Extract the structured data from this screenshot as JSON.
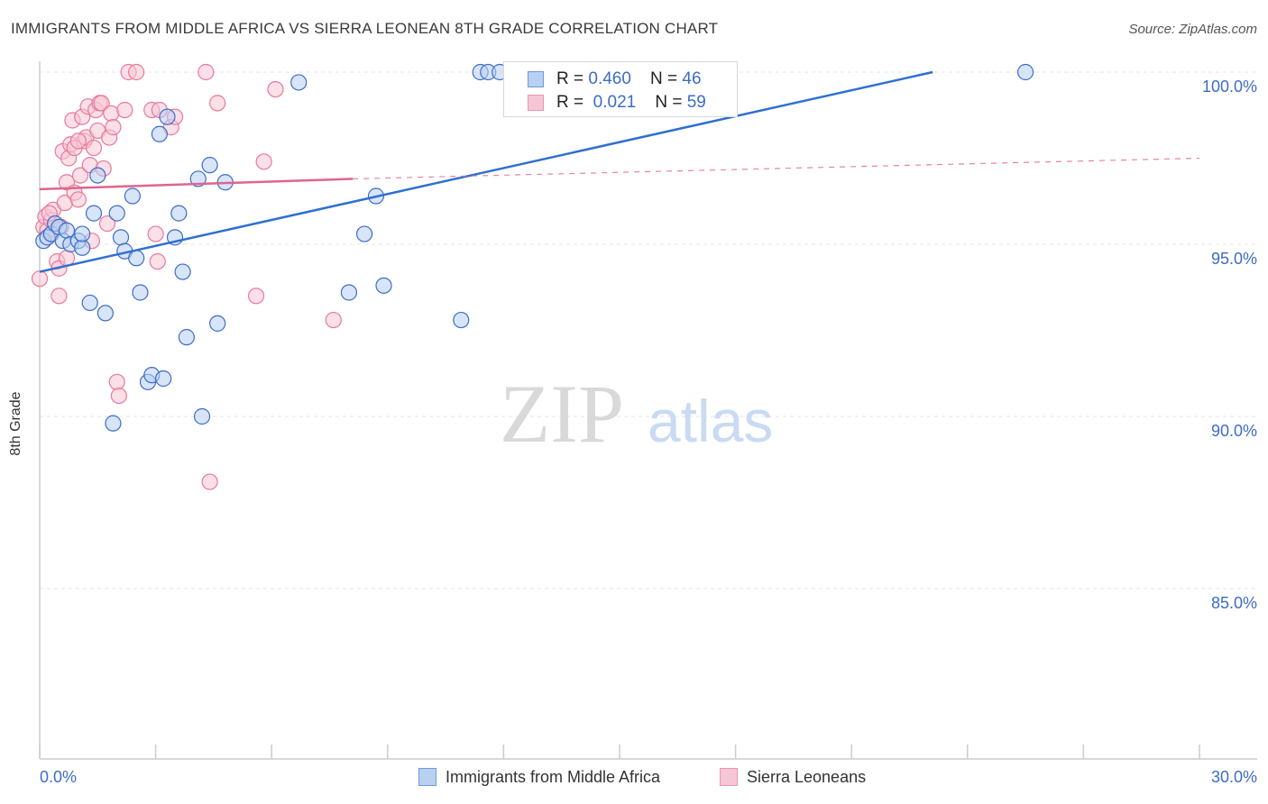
{
  "header": {
    "title": "IMMIGRANTS FROM MIDDLE AFRICA VS SIERRA LEONEAN 8TH GRADE CORRELATION CHART",
    "source": "Source: ZipAtlas.com"
  },
  "watermark": {
    "zip": "ZIP",
    "atlas": "atlas"
  },
  "legend": {
    "series1": {
      "r_label": "R = ",
      "r_value": "0.460",
      "n_label": "N = ",
      "n_value": "46"
    },
    "series2": {
      "r_label": "R = ",
      "r_value": "0.021",
      "n_label": "N = ",
      "n_value": "59"
    }
  },
  "colors": {
    "blue": "#3d6cc6",
    "blue_fill": "#b8d0f2",
    "blue_line": "#2f6fd0",
    "pink": "#e8789c",
    "pink_fill": "#f7c6d6",
    "pink_line": "#e0648e",
    "grid": "#e6e6e6"
  },
  "chart_data": {
    "type": "scatter",
    "title": "IMMIGRANTS FROM MIDDLE AFRICA VS SIERRA LEONEAN 8TH GRADE CORRELATION CHART",
    "xlabel": "",
    "ylabel": "8th Grade",
    "xlim": [
      0,
      30
    ],
    "ylim": [
      80,
      100.4
    ],
    "x_tick_labels": [
      "0.0%",
      "30.0%"
    ],
    "y_ticks": [
      100,
      95,
      90,
      85
    ],
    "y_tick_labels": [
      "100.0%",
      "95.0%",
      "90.0%",
      "85.0%"
    ],
    "grid": true,
    "legend_position": "bottom",
    "series": [
      {
        "name": "Immigrants from Middle Africa",
        "color": "#3d6cc6",
        "r": 0.46,
        "n": 46,
        "trend": {
          "x": [
            0,
            23.1
          ],
          "y": [
            94.2,
            100.0
          ]
        },
        "points": [
          [
            0.1,
            95.1
          ],
          [
            0.2,
            95.2
          ],
          [
            0.3,
            95.3
          ],
          [
            0.4,
            95.6
          ],
          [
            0.5,
            95.5
          ],
          [
            0.6,
            95.1
          ],
          [
            0.7,
            95.4
          ],
          [
            0.8,
            95.0
          ],
          [
            1.0,
            95.1
          ],
          [
            1.1,
            94.9
          ],
          [
            1.1,
            95.3
          ],
          [
            1.3,
            93.3
          ],
          [
            1.4,
            95.9
          ],
          [
            1.5,
            97.0
          ],
          [
            1.7,
            93.0
          ],
          [
            1.9,
            89.8
          ],
          [
            2.0,
            95.9
          ],
          [
            2.1,
            95.2
          ],
          [
            2.2,
            94.8
          ],
          [
            2.4,
            96.4
          ],
          [
            2.5,
            94.6
          ],
          [
            2.6,
            93.6
          ],
          [
            2.8,
            91.0
          ],
          [
            2.9,
            91.2
          ],
          [
            3.1,
            98.2
          ],
          [
            3.2,
            91.1
          ],
          [
            3.3,
            98.7
          ],
          [
            3.5,
            95.2
          ],
          [
            3.6,
            95.9
          ],
          [
            3.7,
            94.2
          ],
          [
            3.8,
            92.3
          ],
          [
            4.1,
            96.9
          ],
          [
            4.2,
            90.0
          ],
          [
            4.4,
            97.3
          ],
          [
            4.6,
            92.7
          ],
          [
            4.8,
            96.8
          ],
          [
            6.7,
            99.7
          ],
          [
            8.0,
            93.6
          ],
          [
            8.4,
            95.3
          ],
          [
            8.7,
            96.4
          ],
          [
            8.9,
            93.8
          ],
          [
            10.9,
            92.8
          ],
          [
            11.4,
            100.0
          ],
          [
            11.6,
            100.0
          ],
          [
            11.9,
            100.0
          ],
          [
            25.5,
            100.0
          ]
        ]
      },
      {
        "name": "Sierra Leoneans",
        "color": "#e8789c",
        "r": 0.021,
        "n": 59,
        "trend": {
          "x": [
            0,
            8.1
          ],
          "y": [
            96.6,
            96.9
          ]
        },
        "trend_dashed": {
          "x": [
            8.1,
            30
          ],
          "y": [
            96.9,
            97.5
          ]
        },
        "points": [
          [
            0.0,
            94.0
          ],
          [
            0.1,
            95.5
          ],
          [
            0.15,
            95.8
          ],
          [
            0.2,
            95.4
          ],
          [
            0.3,
            95.7
          ],
          [
            0.35,
            96.0
          ],
          [
            0.4,
            95.6
          ],
          [
            0.45,
            94.5
          ],
          [
            0.5,
            94.3
          ],
          [
            0.5,
            93.5
          ],
          [
            0.6,
            97.7
          ],
          [
            0.65,
            96.2
          ],
          [
            0.7,
            96.8
          ],
          [
            0.75,
            97.5
          ],
          [
            0.8,
            97.9
          ],
          [
            0.85,
            98.6
          ],
          [
            0.9,
            96.5
          ],
          [
            1.0,
            96.3
          ],
          [
            1.05,
            97.0
          ],
          [
            1.1,
            98.7
          ],
          [
            1.15,
            98.0
          ],
          [
            1.2,
            98.1
          ],
          [
            1.25,
            99.0
          ],
          [
            1.3,
            97.3
          ],
          [
            1.35,
            95.1
          ],
          [
            1.4,
            97.8
          ],
          [
            1.45,
            98.9
          ],
          [
            1.5,
            98.3
          ],
          [
            1.55,
            99.1
          ],
          [
            1.6,
            99.1
          ],
          [
            1.65,
            97.2
          ],
          [
            1.75,
            95.6
          ],
          [
            1.8,
            98.1
          ],
          [
            1.85,
            98.8
          ],
          [
            1.9,
            98.4
          ],
          [
            2.0,
            91.0
          ],
          [
            2.05,
            90.6
          ],
          [
            2.2,
            98.9
          ],
          [
            2.3,
            100.0
          ],
          [
            2.5,
            100.0
          ],
          [
            2.9,
            98.9
          ],
          [
            3.0,
            95.3
          ],
          [
            3.05,
            94.5
          ],
          [
            3.1,
            98.9
          ],
          [
            3.4,
            98.4
          ],
          [
            3.5,
            98.7
          ],
          [
            4.3,
            100.0
          ],
          [
            4.4,
            88.1
          ],
          [
            4.6,
            99.1
          ],
          [
            5.6,
            93.5
          ],
          [
            5.8,
            97.4
          ],
          [
            6.1,
            99.5
          ],
          [
            7.6,
            92.8
          ],
          [
            0.25,
            95.9
          ],
          [
            0.55,
            95.5
          ],
          [
            0.9,
            97.8
          ],
          [
            0.3,
            95.3
          ],
          [
            1.0,
            98.0
          ],
          [
            0.7,
            94.6
          ]
        ]
      }
    ]
  }
}
